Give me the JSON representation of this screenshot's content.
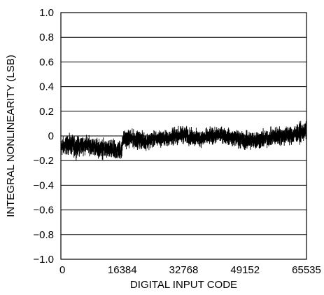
{
  "chart_data": {
    "type": "line",
    "title": "",
    "xlabel": "DIGITAL INPUT CODE",
    "ylabel": "INTEGRAL NONLINEARITY (LSB)",
    "xlim": [
      0,
      65535
    ],
    "ylim": [
      -1.0,
      1.0
    ],
    "x_ticks": [
      0,
      16384,
      32768,
      49152,
      65535
    ],
    "x_tick_labels": [
      "0",
      "16384",
      "32768",
      "49152",
      "65535"
    ],
    "y_ticks": [
      1.0,
      0.8,
      0.6,
      0.4,
      0.2,
      0,
      -0.2,
      -0.4,
      -0.6,
      -0.8,
      -1.0
    ],
    "y_tick_labels": [
      "1.0",
      "0.8",
      "0.6",
      "0.4",
      "0.2",
      "0",
      "−0.2",
      "−0.4",
      "−0.6",
      "−0.8",
      "−1.0"
    ],
    "grid": "horizontal",
    "line_color": "#000000",
    "series": [
      {
        "x": [
          0,
          2048,
          4096,
          6144,
          8192,
          10240,
          12288,
          14336,
          16383,
          16385,
          18432,
          20480,
          22528,
          24576,
          26624,
          28672,
          30720,
          32768,
          34816,
          36864,
          38912,
          40960,
          43008,
          45056,
          47104,
          49152,
          51200,
          53248,
          55296,
          57344,
          59392,
          61440,
          63488,
          65535
        ],
        "values": [
          -0.09,
          -0.07,
          -0.09,
          -0.07,
          -0.08,
          -0.1,
          -0.11,
          -0.12,
          -0.11,
          -0.03,
          -0.02,
          -0.03,
          -0.04,
          -0.03,
          -0.02,
          -0.02,
          0.0,
          0.01,
          -0.01,
          -0.02,
          -0.01,
          0.0,
          0.01,
          -0.01,
          -0.02,
          -0.04,
          -0.03,
          -0.03,
          -0.02,
          0.0,
          0.0,
          0.01,
          0.02,
          0.04
        ],
        "band": [
          0.12,
          0.12,
          0.13,
          0.12,
          0.11,
          0.12,
          0.12,
          0.13,
          0.12,
          0.11,
          0.11,
          0.11,
          0.11,
          0.1,
          0.1,
          0.1,
          0.11,
          0.11,
          0.11,
          0.11,
          0.11,
          0.1,
          0.1,
          0.1,
          0.11,
          0.12,
          0.12,
          0.12,
          0.11,
          0.12,
          0.12,
          0.12,
          0.12,
          0.12
        ]
      }
    ]
  }
}
